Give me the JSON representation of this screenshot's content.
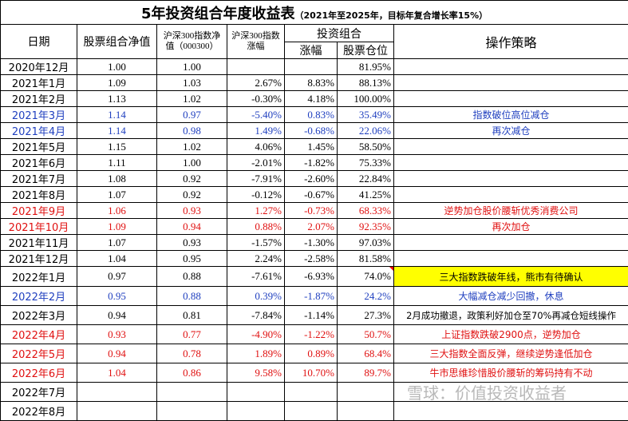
{
  "title": "5年投资组合年度收益表",
  "subtitle": "（2021年至2025年，目标年复合增长率15%）",
  "headers": [
    "日期",
    "股票组合净值",
    "沪深300指数净值（000300）",
    "沪深300指数涨幅",
    "投资组合",
    "操作策略"
  ],
  "subheaders": [
    "涨幅",
    "股票仓位"
  ],
  "table": {
    "rows": [
      {
        "cells": [
          "2020年12月",
          "1.00",
          "1.00",
          null,
          null,
          "81.95%",
          null
        ]
      },
      {
        "cells": [
          "2021年1月",
          "1.09",
          "1.03",
          "2.67%",
          "8.83%",
          "88.13%",
          null
        ]
      },
      {
        "cells": [
          "2021年2月",
          "1.13",
          "1.02",
          "-0.30%",
          "4.18%",
          "100.00%",
          null
        ]
      },
      {
        "cells": [
          "2021年3月",
          "1.14",
          "0.97",
          "-5.40%",
          "0.83%",
          "35.49%",
          "指数破位高位减仓"
        ],
        "color": "#1f3fbf"
      },
      {
        "cells": [
          "2021年4月",
          "1.14",
          "0.98",
          "1.49%",
          "-0.68%",
          "22.06%",
          "再次减仓"
        ],
        "color": "#1f3fbf"
      },
      {
        "cells": [
          "2021年5月",
          "1.15",
          "1.02",
          "4.06%",
          "1.45%",
          "58.50%",
          null
        ]
      },
      {
        "cells": [
          "2021年6月",
          "1.11",
          "1.00",
          "-2.01%",
          "-1.82%",
          "75.33%",
          null
        ]
      },
      {
        "cells": [
          "2021年7月",
          "1.08",
          "0.92",
          "-7.91%",
          "-2.60%",
          "22.84%",
          null
        ]
      },
      {
        "cells": [
          "2021年8月",
          "1.07",
          "0.92",
          "-0.12%",
          "-0.67%",
          "41.25%",
          null
        ]
      },
      {
        "cells": [
          "2021年9月",
          "1.06",
          "0.93",
          "1.27%",
          "-0.73%",
          "68.33%",
          "逆势加仓股价腰斩优秀消费公司"
        ],
        "color": "#e01010"
      },
      {
        "cells": [
          "2021年10月",
          "1.09",
          "0.94",
          "0.88%",
          "2.07%",
          "92.35%",
          "再次加仓"
        ],
        "color": "#e01010"
      },
      {
        "cells": [
          "2021年11月",
          "1.07",
          "0.93",
          "-1.57%",
          "-1.30%",
          "97.03%",
          null
        ]
      },
      {
        "cells": [
          "2021年12月",
          "1.04",
          "0.95",
          "2.24%",
          "-2.58%",
          "81.58%",
          null
        ]
      },
      {
        "cells": [
          "2022年1月",
          "0.97",
          "0.88",
          "-7.61%",
          "-6.93%",
          "74.0%",
          "三大指数跌破年线，熊市有待确认"
        ],
        "highlight": "#ffff00"
      },
      {
        "cells": [
          "2022年2月",
          "0.95",
          "0.88",
          "0.39%",
          "-1.87%",
          "24.2%",
          "大幅减仓减少回撤，休息"
        ],
        "color": "#1f3fbf"
      },
      {
        "cells": [
          "2022年3月",
          "0.94",
          "0.81",
          "-7.84%",
          "-1.14%",
          "27.3%",
          "2月成功撤退，政策利好加仓至70%再减仓短线操作"
        ]
      },
      {
        "cells": [
          "2022年4月",
          "0.93",
          "0.77",
          "-4.90%",
          "-1.22%",
          "50.7%",
          "上证指数跌破2900点，逆势加仓"
        ],
        "color": "#e01010"
      },
      {
        "cells": [
          "2022年5月",
          "0.94",
          "0.78",
          "1.89%",
          "0.89%",
          "68.4%",
          "三大指数全面反弹，继续逆势逢低加仓"
        ],
        "color": "#e01010"
      },
      {
        "cells": [
          "2022年6月",
          "1.04",
          "0.86",
          "9.58%",
          "10.70%",
          "89.7%",
          "牛市思维珍惜股价腰斩的筹码持有不动"
        ],
        "color": "#e01010"
      },
      {
        "cells": [
          "2022年7月",
          null,
          null,
          null,
          null,
          null,
          null
        ]
      },
      {
        "cells": [
          "2022年8月",
          null,
          null,
          null,
          null,
          null,
          null
        ]
      }
    ]
  },
  "watermark": "雪球：价值投资收益者"
}
